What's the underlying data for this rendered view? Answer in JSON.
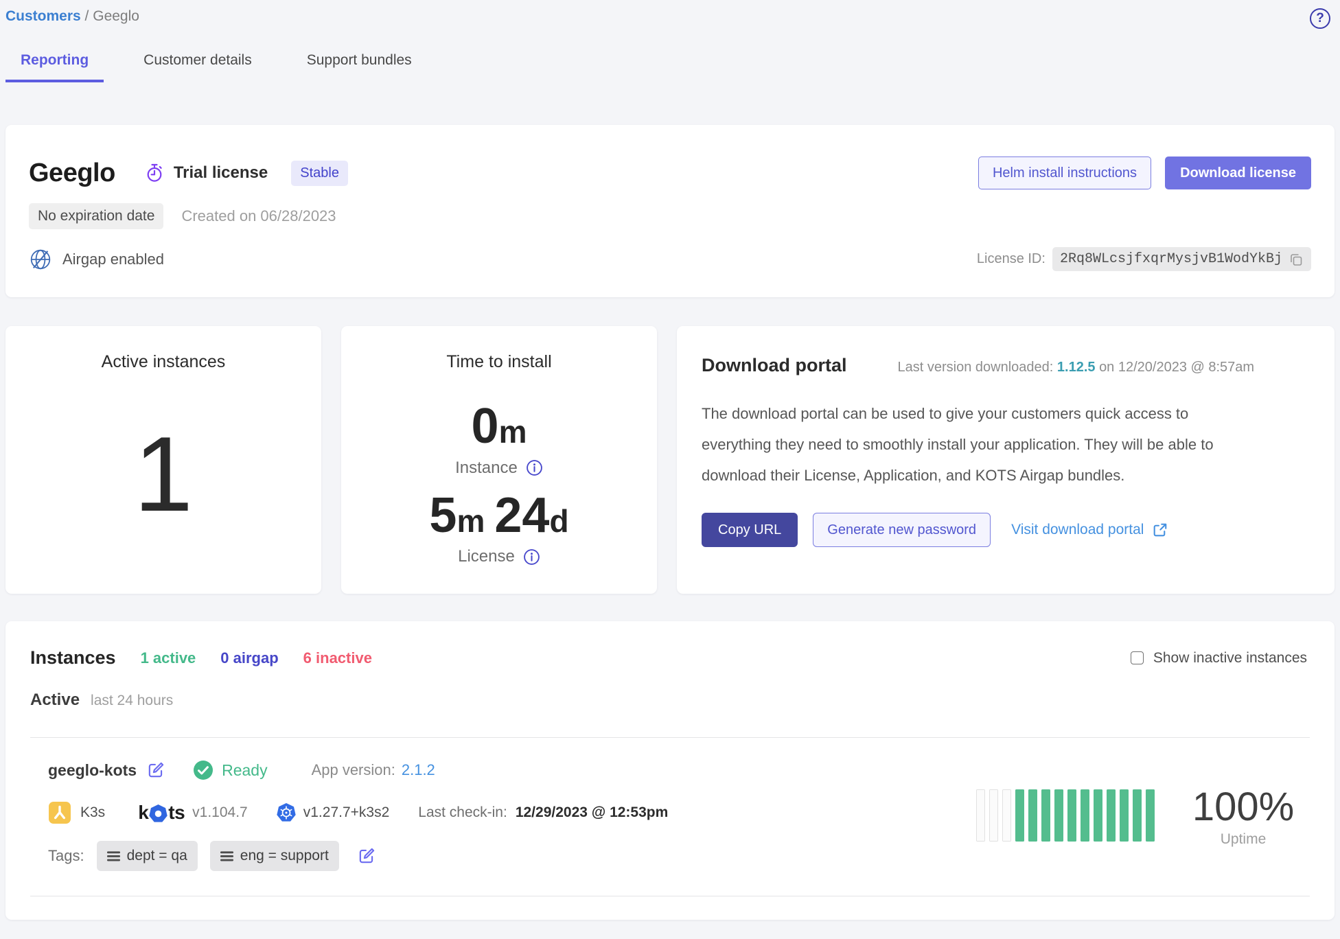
{
  "colors": {
    "page_bg": "#f4f5f8",
    "accent_periwinkle": "#5c5ce0",
    "accent_indigo_dark": "#44479e",
    "button_primary": "#7173e2",
    "link_blue": "#4591e0",
    "breadcrumb_blue": "#3b7fd1",
    "teal_version": "#3a9db1",
    "green": "#44b98a",
    "bar_green": "#54bd8e",
    "airgap_blue": "#4646c8",
    "inactive_pink": "#f15b70",
    "violet_icon": "#7e3ff2"
  },
  "header": {
    "help_glyph": "?"
  },
  "breadcrumb": {
    "link": "Customers",
    "separator": "/",
    "current": "Geeglo"
  },
  "tabs": [
    {
      "label": "Reporting",
      "active": true
    },
    {
      "label": "Customer details",
      "active": false
    },
    {
      "label": "Support bundles",
      "active": false
    }
  ],
  "license_card": {
    "app_name": "Geeglo",
    "license_type": "Trial license",
    "channel_badge": "Stable",
    "expiration_badge": "No expiration date",
    "created": "Created on 06/28/2023",
    "airgap_label": "Airgap enabled",
    "helm_button": "Helm install instructions",
    "download_button": "Download license",
    "license_id_label": "License ID:",
    "license_id": "2Rq8WLcsjfxqrMysjvB1WodYkBj"
  },
  "active_instances_card": {
    "title": "Active instances",
    "value": "1"
  },
  "time_to_install_card": {
    "title": "Time to install",
    "instance": {
      "value": "0",
      "unit": "m",
      "label": "Instance"
    },
    "license": {
      "value1": "5",
      "unit1": "m",
      "value2": "24",
      "unit2": "d",
      "label": "License"
    }
  },
  "download_portal_card": {
    "title": "Download portal",
    "last_version_label": "Last version downloaded:",
    "last_version": "1.12.5",
    "last_version_date": "on 12/20/2023 @ 8:57am",
    "description": "The download portal can be used to give your customers quick access to everything they need to smoothly install your application. They will be able to download their License, Application, and KOTS Airgap bundles.",
    "copy_url_button": "Copy URL",
    "generate_password_button": "Generate new password",
    "visit_portal_link": "Visit download portal"
  },
  "instances_section": {
    "title": "Instances",
    "active_count": "1 active",
    "airgap_count": "0 airgap",
    "inactive_count": "6 inactive",
    "show_inactive_label": "Show inactive instances",
    "active_header": "Active",
    "active_period": "last 24 hours",
    "instance": {
      "name": "geeglo-kots",
      "status": "Ready",
      "app_version_label": "App version:",
      "app_version": "2.1.2",
      "distribution": "K3s",
      "kots_wordmark_prefix": "k",
      "kots_wordmark_suffix": "ts",
      "kots_version": "v1.104.7",
      "k8s_version": "v1.27.7+k3s2",
      "last_checkin_label": "Last check-in:",
      "last_checkin": "12/29/2023 @ 12:53pm",
      "tags_label": "Tags:",
      "tags": [
        "dept = qa",
        "eng = support"
      ],
      "uptime_bars": {
        "empty": 3,
        "filled": 11
      },
      "uptime_percent": "100%",
      "uptime_label": "Uptime"
    }
  }
}
